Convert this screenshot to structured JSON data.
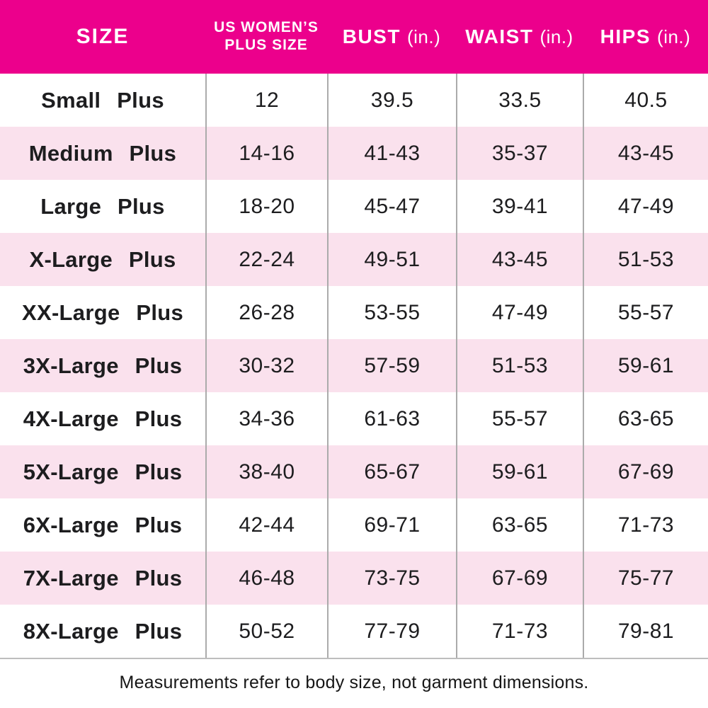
{
  "chart_data": {
    "type": "table",
    "header": {
      "col1": "SIZE",
      "col2_line1": "US WOMEN’S",
      "col2_line2": "PLUS SIZE",
      "col3_name": "BUST",
      "col3_unit": "(in.)",
      "col4_name": "WAIST",
      "col4_unit": "(in.)",
      "col5_name": "HIPS",
      "col5_unit": "(in.)"
    },
    "columns": [
      "SIZE",
      "US WOMEN’S PLUS SIZE",
      "BUST (in.)",
      "WAIST (in.)",
      "HIPS (in.)"
    ],
    "rows": [
      {
        "size": "Small Plus",
        "us_plus_size": "12",
        "bust": "39.5",
        "waist": "33.5",
        "hips": "40.5"
      },
      {
        "size": "Medium Plus",
        "us_plus_size": "14-16",
        "bust": "41-43",
        "waist": "35-37",
        "hips": "43-45"
      },
      {
        "size": "Large Plus",
        "us_plus_size": "18-20",
        "bust": "45-47",
        "waist": "39-41",
        "hips": "47-49"
      },
      {
        "size": "X-Large Plus",
        "us_plus_size": "22-24",
        "bust": "49-51",
        "waist": "43-45",
        "hips": "51-53"
      },
      {
        "size": "XX-Large Plus",
        "us_plus_size": "26-28",
        "bust": "53-55",
        "waist": "47-49",
        "hips": "55-57"
      },
      {
        "size": "3X-Large Plus",
        "us_plus_size": "30-32",
        "bust": "57-59",
        "waist": "51-53",
        "hips": "59-61"
      },
      {
        "size": "4X-Large Plus",
        "us_plus_size": "34-36",
        "bust": "61-63",
        "waist": "55-57",
        "hips": "63-65"
      },
      {
        "size": "5X-Large Plus",
        "us_plus_size": "38-40",
        "bust": "65-67",
        "waist": "59-61",
        "hips": "67-69"
      },
      {
        "size": "6X-Large Plus",
        "us_plus_size": "42-44",
        "bust": "69-71",
        "waist": "63-65",
        "hips": "71-73"
      },
      {
        "size": "7X-Large Plus",
        "us_plus_size": "46-48",
        "bust": "73-75",
        "waist": "67-69",
        "hips": "75-77"
      },
      {
        "size": "8X-Large Plus",
        "us_plus_size": "50-52",
        "bust": "77-79",
        "waist": "71-73",
        "hips": "79-81"
      }
    ]
  },
  "footer": {
    "note": "Measurements refer to body size, not garment dimensions."
  },
  "colors": {
    "header_bg": "#EC008C",
    "header_text": "#FFFFFF",
    "alt_row_bg": "#FAE1ED",
    "divider": "#ABABAB",
    "bottom_line": "#BDBDBD",
    "text": "#1D1D1F"
  }
}
